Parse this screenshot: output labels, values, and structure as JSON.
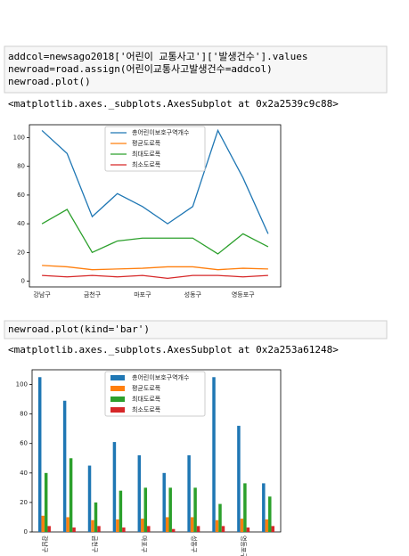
{
  "cells": [
    {
      "code": [
        "addcol=newsago2018['어린이 교통사고']['발생건수'].values",
        "newroad=road.assign(어린이교통사고발생건수=addcol)",
        "newroad.plot()"
      ],
      "output": "<matplotlib.axes._subplots.AxesSubplot at 0x2a2539c9c88>"
    },
    {
      "code": [
        "newroad.plot(kind='bar')"
      ],
      "output": "<matplotlib.axes._subplots.AxesSubplot at 0x2a253a61248>"
    }
  ],
  "chart_data": [
    {
      "type": "line",
      "categories": [
        "강남구",
        null,
        "금천구",
        null,
        "마포구",
        null,
        "성동구",
        null,
        "영등포구",
        null
      ],
      "series": [
        {
          "name": "총어린이보호구역개수",
          "color": "#1f77b4",
          "values": [
            105,
            89,
            45,
            61,
            52,
            40,
            52,
            105,
            72,
            33
          ]
        },
        {
          "name": "평균도로폭",
          "color": "#ff7f0e",
          "values": [
            11,
            10,
            8,
            8.5,
            9,
            10,
            10,
            8,
            9,
            8.5
          ]
        },
        {
          "name": "최대도로폭",
          "color": "#2ca02c",
          "values": [
            40,
            50,
            20,
            28,
            30,
            30,
            30,
            19,
            33,
            24
          ]
        },
        {
          "name": "최소도로폭",
          "color": "#d62728",
          "values": [
            4,
            3,
            4,
            3,
            4,
            2,
            4,
            4,
            3,
            4
          ]
        }
      ],
      "ylim": [
        -4,
        109
      ],
      "yticks": [
        0,
        20,
        40,
        60,
        80,
        100
      ]
    },
    {
      "type": "bar",
      "categories": [
        "강남구",
        null,
        "금천구",
        null,
        "마포구",
        null,
        "성동구",
        null,
        "영등포구",
        null
      ],
      "series": [
        {
          "name": "총어린이보호구역개수",
          "color": "#1f77b4",
          "values": [
            105,
            89,
            45,
            61,
            52,
            40,
            52,
            105,
            72,
            33
          ]
        },
        {
          "name": "평균도로폭",
          "color": "#ff7f0e",
          "values": [
            11,
            10,
            8,
            8.5,
            9,
            10,
            10,
            8,
            9,
            8.5
          ]
        },
        {
          "name": "최대도로폭",
          "color": "#2ca02c",
          "values": [
            40,
            50,
            20,
            28,
            30,
            30,
            30,
            19,
            33,
            24
          ]
        },
        {
          "name": "최소도로폭",
          "color": "#d62728",
          "values": [
            4,
            3,
            4,
            3,
            4,
            2,
            4,
            4,
            3,
            4
          ]
        }
      ],
      "ylim": [
        0,
        110
      ],
      "yticks": [
        0,
        20,
        40,
        60,
        80,
        100
      ]
    }
  ]
}
